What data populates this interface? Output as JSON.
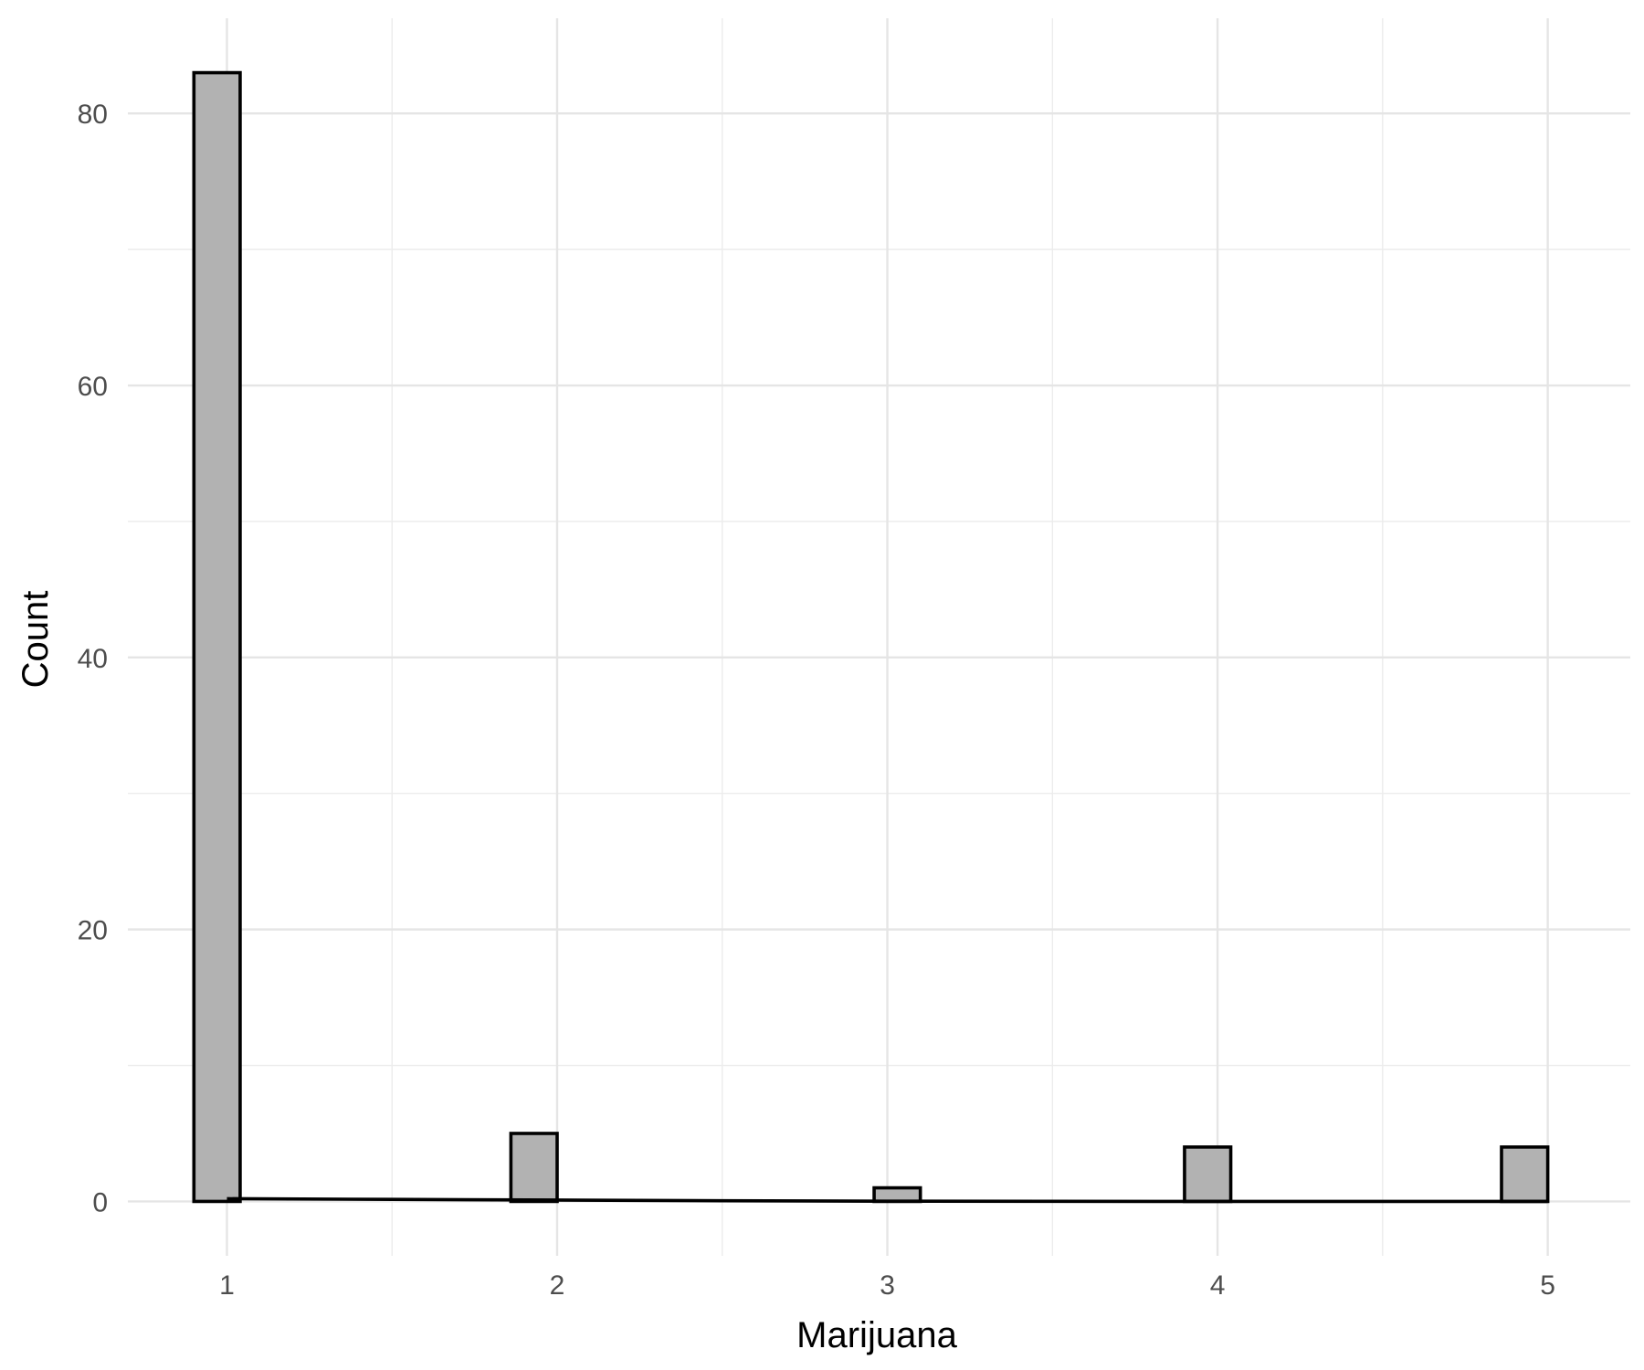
{
  "chart_data": {
    "type": "bar",
    "subtype": "histogram",
    "xlabel": "Marijuana",
    "ylabel": "Count",
    "x_ticks": [
      1,
      2,
      3,
      4,
      5
    ],
    "y_ticks": [
      0,
      20,
      40,
      60,
      80
    ],
    "xlim": [
      0.7,
      5.25
    ],
    "ylim": [
      -4,
      87
    ],
    "bins": [
      {
        "x": 0.97,
        "width": 0.14,
        "count": 83
      },
      {
        "x": 1.93,
        "width": 0.14,
        "count": 5
      },
      {
        "x": 3.03,
        "width": 0.14,
        "count": 1
      },
      {
        "x": 3.97,
        "width": 0.14,
        "count": 4
      },
      {
        "x": 4.93,
        "width": 0.14,
        "count": 4
      }
    ],
    "density_line": {
      "x": [
        1.0,
        1.5,
        2.0,
        2.5,
        3.0,
        3.5,
        4.0,
        4.5,
        5.0
      ],
      "y": [
        0.2,
        0.15,
        0.1,
        0.05,
        0.02,
        0.01,
        0.0,
        0.0,
        0.0
      ]
    },
    "grid": true,
    "legend": "none"
  }
}
